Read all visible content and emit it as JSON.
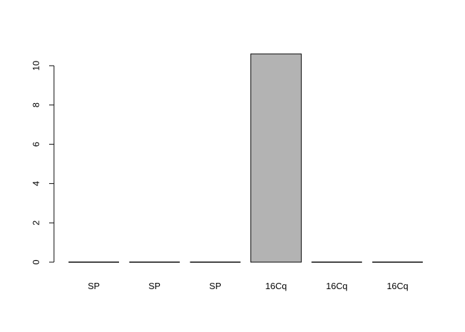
{
  "chart_data": {
    "type": "bar",
    "categories": [
      "SP",
      "SP",
      "SP",
      "16Cq",
      "16Cq",
      "16Cq"
    ],
    "values": [
      0,
      0,
      0,
      10.6,
      0,
      0
    ],
    "ylim": [
      0,
      10
    ],
    "yticks": [
      0,
      2,
      4,
      6,
      8,
      10
    ],
    "ytick_labels": [
      "0",
      "2",
      "4",
      "6",
      "8",
      "10"
    ],
    "title": "",
    "xlabel": "",
    "ylabel": "",
    "grid": false,
    "legend": "none",
    "bar_fill": "#b3b3b3",
    "bar_stroke": "#000000"
  }
}
